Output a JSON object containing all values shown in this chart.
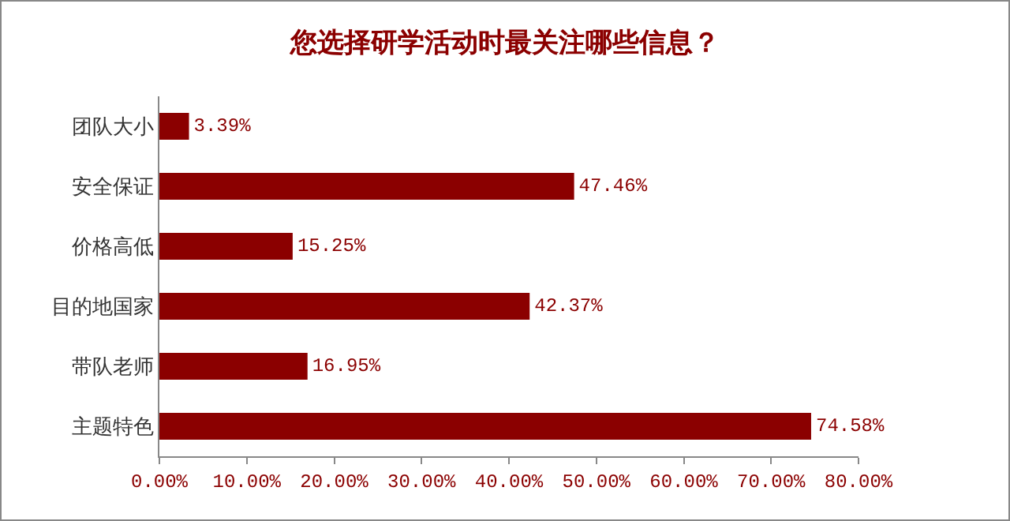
{
  "chart_data": {
    "type": "bar",
    "orientation": "horizontal",
    "title": "您选择研学活动时最关注哪些信息？",
    "categories": [
      "团队大小",
      "安全保证",
      "价格高低",
      "目的地国家",
      "带队老师",
      "主题特色"
    ],
    "values": [
      3.39,
      47.46,
      15.25,
      42.37,
      16.95,
      74.58
    ],
    "value_labels": [
      "3.39%",
      "47.46%",
      "15.25%",
      "42.37%",
      "16.95%",
      "74.58%"
    ],
    "color": "#8b0000",
    "xlim": [
      0,
      80
    ],
    "xticks": [
      {
        "value": 0,
        "label": "0.00%"
      },
      {
        "value": 10,
        "label": "10.00%"
      },
      {
        "value": 20,
        "label": "20.00%"
      },
      {
        "value": 30,
        "label": "30.00%"
      },
      {
        "value": 40,
        "label": "40.00%"
      },
      {
        "value": 50,
        "label": "50.00%"
      },
      {
        "value": 60,
        "label": "60.00%"
      },
      {
        "value": 70,
        "label": "70.00%"
      },
      {
        "value": 80,
        "label": "80.00%"
      }
    ],
    "grid": false
  }
}
